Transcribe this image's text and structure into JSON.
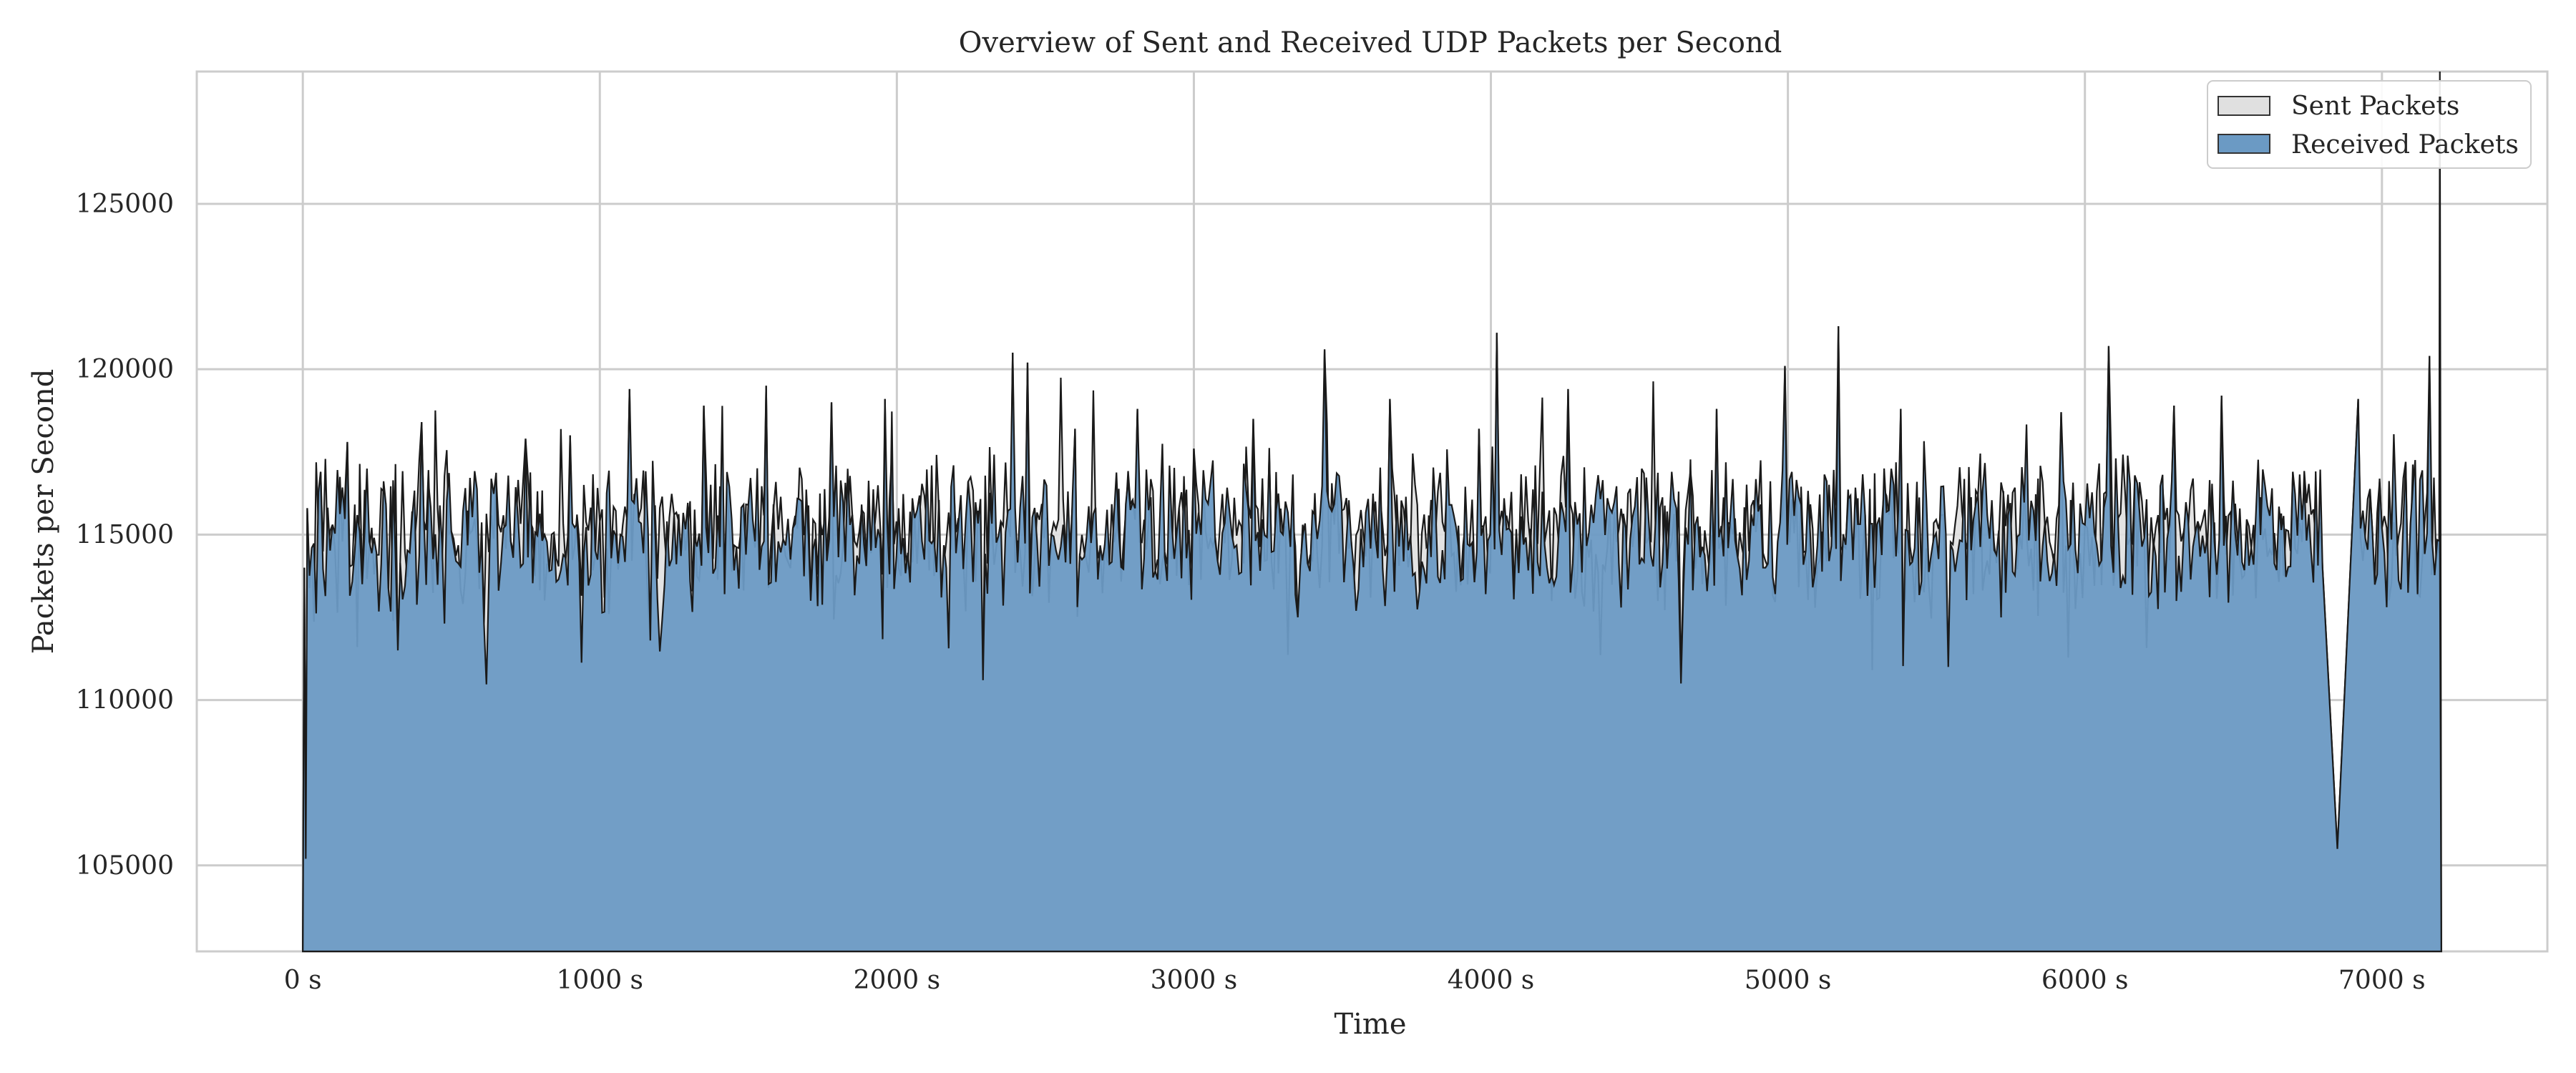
{
  "chart_data": {
    "type": "area",
    "title": "Overview of Sent and Received UDP Packets per Second",
    "xlabel": "Time",
    "ylabel": "Packets per Second",
    "xlim": [
      -357,
      7557
    ],
    "ylim": [
      102400,
      129000
    ],
    "x_ticks": [
      0,
      1000,
      2000,
      3000,
      4000,
      5000,
      6000,
      7000
    ],
    "x_tick_labels": [
      "0 s",
      "1000 s",
      "2000 s",
      "3000 s",
      "4000 s",
      "5000 s",
      "6000 s",
      "7000 s"
    ],
    "y_ticks": [
      105000,
      110000,
      115000,
      120000,
      125000
    ],
    "y_tick_labels": [
      "105000",
      "110000",
      "115000",
      "120000",
      "125000"
    ],
    "grid": true,
    "legend": "top-right",
    "series": [
      {
        "name": "Sent Packets",
        "color": "#e0e0e0",
        "edge_color": "#1a1a1a",
        "approx_mean": 115000,
        "approx_range": [
          105500,
          129000
        ],
        "points": [
          [
            0,
            102400
          ],
          [
            5,
            114000
          ],
          [
            10,
            105200
          ],
          [
            15,
            115800
          ],
          [
            30,
            114600
          ],
          [
            60,
            116900
          ],
          [
            100,
            115300
          ],
          [
            150,
            117800
          ],
          [
            200,
            113500
          ],
          [
            280,
            115900
          ],
          [
            320,
            111500
          ],
          [
            400,
            118400
          ],
          [
            500,
            115100
          ],
          [
            610,
            112300
          ],
          [
            700,
            114800
          ],
          [
            750,
            117900
          ],
          [
            830,
            113900
          ],
          [
            900,
            118000
          ],
          [
            1000,
            115400
          ],
          [
            1100,
            119400
          ],
          [
            1170,
            111800
          ],
          [
            1250,
            115600
          ],
          [
            1350,
            118900
          ],
          [
            1420,
            113200
          ],
          [
            1500,
            115900
          ],
          [
            1560,
            119500
          ],
          [
            1650,
            115200
          ],
          [
            1710,
            113000
          ],
          [
            1780,
            119000
          ],
          [
            1850,
            115600
          ],
          [
            1960,
            119100
          ],
          [
            2060,
            115500
          ],
          [
            2150,
            113100
          ],
          [
            2240,
            116600
          ],
          [
            2290,
            110600
          ],
          [
            2350,
            115400
          ],
          [
            2390,
            120500
          ],
          [
            2440,
            120200
          ],
          [
            2520,
            115000
          ],
          [
            2600,
            118200
          ],
          [
            2700,
            114700
          ],
          [
            2810,
            118800
          ],
          [
            2870,
            113900
          ],
          [
            2950,
            115800
          ],
          [
            3000,
            117600
          ],
          [
            3080,
            114200
          ],
          [
            3200,
            118500
          ],
          [
            3300,
            115000
          ],
          [
            3350,
            112500
          ],
          [
            3440,
            120600
          ],
          [
            3530,
            114800
          ],
          [
            3660,
            119100
          ],
          [
            3760,
            113300
          ],
          [
            3860,
            115900
          ],
          [
            3960,
            118200
          ],
          [
            4020,
            121100
          ],
          [
            4110,
            114700
          ],
          [
            4260,
            119400
          ],
          [
            4400,
            115800
          ],
          [
            4500,
            114100
          ],
          [
            4640,
            110500
          ],
          [
            4760,
            118800
          ],
          [
            4900,
            115700
          ],
          [
            4990,
            120100
          ],
          [
            5060,
            114500
          ],
          [
            5170,
            121300
          ],
          [
            5260,
            115600
          ],
          [
            5380,
            118800
          ],
          [
            5450,
            113600
          ],
          [
            5540,
            111000
          ],
          [
            5640,
            116200
          ],
          [
            5780,
            115000
          ],
          [
            5920,
            118700
          ],
          [
            6000,
            115300
          ],
          [
            6080,
            120700
          ],
          [
            6200,
            114900
          ],
          [
            6300,
            118900
          ],
          [
            6380,
            115400
          ],
          [
            6460,
            119200
          ],
          [
            6560,
            114600
          ],
          [
            6700,
            116900
          ],
          [
            6800,
            114000
          ],
          [
            6850,
            105500
          ],
          [
            6920,
            119100
          ],
          [
            7000,
            115200
          ],
          [
            7080,
            117200
          ],
          [
            7120,
            113200
          ],
          [
            7160,
            120400
          ],
          [
            7190,
            114800
          ],
          [
            7195,
            129000
          ],
          [
            7200,
            102400
          ]
        ]
      },
      {
        "name": "Received Packets",
        "color": "#6b9ac4",
        "edge_color": "#1a1a1a",
        "approx_mean": 115000,
        "approx_range": [
          105500,
          121300
        ],
        "points": [
          [
            0,
            102400
          ],
          [
            5,
            114000
          ],
          [
            10,
            105200
          ],
          [
            15,
            115800
          ],
          [
            30,
            114600
          ],
          [
            60,
            116900
          ],
          [
            100,
            115300
          ],
          [
            150,
            117800
          ],
          [
            200,
            113500
          ],
          [
            280,
            115900
          ],
          [
            320,
            111500
          ],
          [
            400,
            118400
          ],
          [
            500,
            115100
          ],
          [
            610,
            112300
          ],
          [
            700,
            114800
          ],
          [
            750,
            117900
          ],
          [
            830,
            113900
          ],
          [
            900,
            118000
          ],
          [
            1000,
            115400
          ],
          [
            1100,
            119400
          ],
          [
            1170,
            111800
          ],
          [
            1250,
            115600
          ],
          [
            1350,
            118900
          ],
          [
            1420,
            113200
          ],
          [
            1500,
            115900
          ],
          [
            1560,
            119500
          ],
          [
            1650,
            115200
          ],
          [
            1710,
            113000
          ],
          [
            1780,
            119000
          ],
          [
            1850,
            115600
          ],
          [
            1960,
            119100
          ],
          [
            2060,
            115500
          ],
          [
            2150,
            113100
          ],
          [
            2240,
            116600
          ],
          [
            2290,
            110600
          ],
          [
            2350,
            115400
          ],
          [
            2390,
            120500
          ],
          [
            2440,
            120200
          ],
          [
            2520,
            115000
          ],
          [
            2600,
            118200
          ],
          [
            2700,
            114700
          ],
          [
            2810,
            118800
          ],
          [
            2870,
            113900
          ],
          [
            2950,
            115800
          ],
          [
            3000,
            117600
          ],
          [
            3080,
            114200
          ],
          [
            3200,
            118500
          ],
          [
            3300,
            115000
          ],
          [
            3350,
            112500
          ],
          [
            3440,
            120600
          ],
          [
            3530,
            114800
          ],
          [
            3660,
            119100
          ],
          [
            3760,
            113300
          ],
          [
            3860,
            115900
          ],
          [
            3960,
            118200
          ],
          [
            4020,
            121100
          ],
          [
            4110,
            114700
          ],
          [
            4260,
            119400
          ],
          [
            4400,
            115800
          ],
          [
            4500,
            114100
          ],
          [
            4640,
            110500
          ],
          [
            4760,
            118800
          ],
          [
            4900,
            115700
          ],
          [
            4990,
            120100
          ],
          [
            5060,
            114500
          ],
          [
            5170,
            121300
          ],
          [
            5260,
            115600
          ],
          [
            5380,
            118800
          ],
          [
            5450,
            113600
          ],
          [
            5540,
            111000
          ],
          [
            5640,
            116200
          ],
          [
            5780,
            115000
          ],
          [
            5920,
            118700
          ],
          [
            6000,
            115300
          ],
          [
            6080,
            120700
          ],
          [
            6200,
            114900
          ],
          [
            6300,
            118900
          ],
          [
            6380,
            115400
          ],
          [
            6460,
            119200
          ],
          [
            6560,
            114600
          ],
          [
            6700,
            116900
          ],
          [
            6800,
            114000
          ],
          [
            6850,
            105500
          ],
          [
            6920,
            119100
          ],
          [
            7000,
            115200
          ],
          [
            7080,
            117200
          ],
          [
            7120,
            113200
          ],
          [
            7160,
            120400
          ],
          [
            7195,
            114800
          ],
          [
            7200,
            102400
          ]
        ]
      }
    ]
  }
}
